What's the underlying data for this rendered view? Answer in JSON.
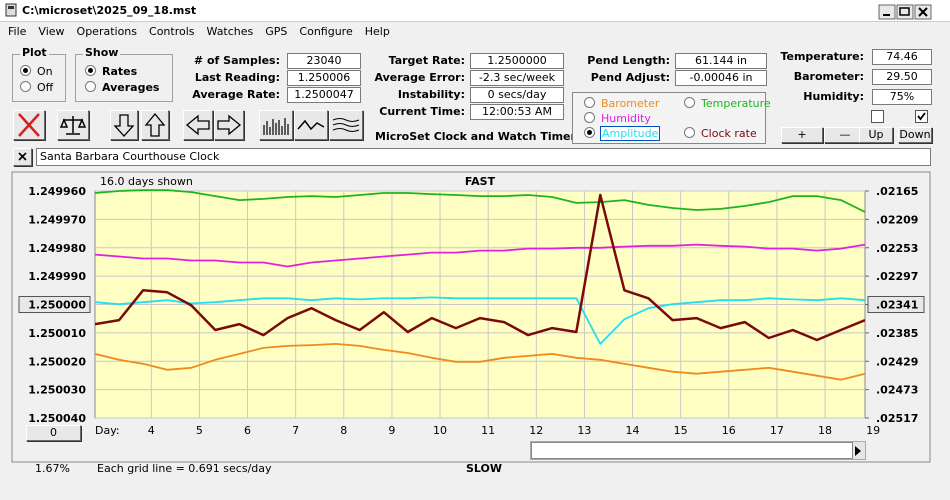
{
  "window": {
    "title": "C:\\microset\\2025_09_18.mst"
  },
  "menu": [
    "File",
    "View",
    "Operations",
    "Controls",
    "Watches",
    "GPS",
    "Configure",
    "Help"
  ],
  "plot_group": {
    "title": "Plot",
    "options": [
      "On",
      "Off"
    ]
  },
  "show_group": {
    "title": "Show",
    "options": [
      "Rates",
      "Averages"
    ]
  },
  "fields": [
    {
      "label": "# of Samples:",
      "value": "23040"
    },
    {
      "label": "Last Reading:",
      "value": "1.250006"
    },
    {
      "label": "Average Rate:",
      "value": "1.2500047"
    },
    {
      "label": "Target Rate:",
      "value": "1.2500000"
    },
    {
      "label": "Average Error:",
      "value": "-2.3 sec/week"
    },
    {
      "label": "Instability:",
      "value": "0 secs/day"
    },
    {
      "label": "Current Time:",
      "value": "12:00:53 AM"
    },
    {
      "label": "Pend Length:",
      "value": "61.144 in"
    },
    {
      "label": "Pend Adjust:",
      "value": "-0.00046 in"
    },
    {
      "label": "Temperature:",
      "value": "74.46"
    },
    {
      "label": "Barometer:",
      "value": "29.50"
    },
    {
      "label": "Humidity:",
      "value": "75%"
    }
  ],
  "env_buttons": [
    "+",
    "—",
    "Up",
    "Down"
  ],
  "app_title": "MicroSet Clock and Watch Timer",
  "clock_name": "Santa Barbara Courthouse Clock",
  "chart_data": {
    "type": "line",
    "span_label": "16.0 days shown",
    "top_label": "FAST",
    "bottom_label": "SLOW",
    "x_label": "Day:",
    "offset_button": "0",
    "zoom_label": "1.67%",
    "grid_note": "Each grid line = 0.691 secs/day",
    "grid": true,
    "selected": 3,
    "ytick_button": 4,
    "y2tick_button": 4,
    "x": [
      2.83,
      3.33,
      3.83,
      4.33,
      4.83,
      5.33,
      5.83,
      6.33,
      6.83,
      7.33,
      7.83,
      8.33,
      8.83,
      9.33,
      9.83,
      10.33,
      10.83,
      11.33,
      11.83,
      12.33,
      12.83,
      13.33,
      13.83,
      14.33,
      14.83,
      15.33,
      15.83,
      16.33,
      16.83,
      17.33,
      17.83,
      18.33,
      18.83
    ],
    "xlim": [
      2.83,
      18.83
    ],
    "xticks": [
      4,
      5,
      6,
      7,
      8,
      9,
      10,
      11,
      12,
      13,
      14,
      15,
      16,
      17,
      18,
      19
    ],
    "ylim": [
      1.25004,
      1.24996
    ],
    "yticks": [
      {
        "value": 1.24996,
        "label": "1.249960"
      },
      {
        "value": 1.24997,
        "label": "1.249970"
      },
      {
        "value": 1.24998,
        "label": "1.249980"
      },
      {
        "value": 1.24999,
        "label": "1.249990"
      },
      {
        "value": 1.25,
        "label": "1.250000"
      },
      {
        "value": 1.25001,
        "label": "1.250010"
      },
      {
        "value": 1.25002,
        "label": "1.250020"
      },
      {
        "value": 1.25003,
        "label": "1.250030"
      },
      {
        "value": 1.25004,
        "label": "1.250040"
      }
    ],
    "y2lim": [
      0.02517,
      0.02165
    ],
    "y2ticks": [
      {
        "value": 0.02165,
        "label": ".02165"
      },
      {
        "value": 0.02209,
        "label": ".02209"
      },
      {
        "value": 0.02253,
        "label": ".02253"
      },
      {
        "value": 0.02297,
        "label": ".02297"
      },
      {
        "value": 0.02341,
        "label": ".02341"
      },
      {
        "value": 0.02385,
        "label": ".02385"
      },
      {
        "value": 0.02429,
        "label": ".02429"
      },
      {
        "value": 0.02473,
        "label": ".02473"
      },
      {
        "value": 0.02517,
        "label": ".02517"
      }
    ],
    "series": [
      {
        "name": "Barometer",
        "color": "#f08a1c",
        "values": [
          1.2500174,
          1.2500195,
          1.2500209,
          1.250023,
          1.2500223,
          1.2500195,
          1.2500174,
          1.2500153,
          1.2500146,
          1.2500143,
          1.2500139,
          1.2500146,
          1.250016,
          1.2500171,
          1.2500188,
          1.2500202,
          1.2500202,
          1.2500188,
          1.2500181,
          1.2500174,
          1.2500188,
          1.2500195,
          1.2500209,
          1.2500223,
          1.2500237,
          1.2500244,
          1.2500237,
          1.250023,
          1.2500223,
          1.2500237,
          1.2500251,
          1.2500265,
          1.2500244
        ]
      },
      {
        "name": "Temperature",
        "color": "#1fb41f",
        "values": [
          1.2499607,
          1.24996,
          1.2499597,
          1.2499597,
          1.2499604,
          1.2499618,
          1.2499632,
          1.2499628,
          1.2499621,
          1.2499618,
          1.2499621,
          1.2499614,
          1.2499607,
          1.2499607,
          1.2499611,
          1.2499614,
          1.2499618,
          1.2499618,
          1.2499614,
          1.2499621,
          1.2499642,
          1.2499639,
          1.2499632,
          1.2499649,
          1.249966,
          1.2499667,
          1.2499663,
          1.2499653,
          1.2499639,
          1.2499618,
          1.2499618,
          1.2499632,
          1.2499674
        ]
      },
      {
        "name": "Humidity",
        "color": "#e020e0",
        "values": [
          1.2499824,
          1.2499831,
          1.2499838,
          1.2499838,
          1.2499845,
          1.2499845,
          1.2499852,
          1.2499852,
          1.2499866,
          1.2499852,
          1.2499845,
          1.2499838,
          1.2499831,
          1.2499824,
          1.2499817,
          1.2499817,
          1.249981,
          1.249981,
          1.2499803,
          1.2499803,
          1.24998,
          1.24998,
          1.2499796,
          1.2499793,
          1.2499793,
          1.2499789,
          1.2499793,
          1.2499796,
          1.2499803,
          1.2499803,
          1.249981,
          1.2499803,
          1.2499789
        ]
      },
      {
        "name": "Amplitude",
        "color": "#22dff0",
        "values": [
          1.2499992,
          1.2499999,
          1.2499992,
          1.2499985,
          1.2499996,
          1.2499992,
          1.2499985,
          1.2499978,
          1.2499978,
          1.2499985,
          1.2499978,
          1.2499982,
          1.2499978,
          1.2499978,
          1.2499975,
          1.2499978,
          1.2499978,
          1.2499978,
          1.2499978,
          1.2499978,
          1.2499978,
          1.2500139,
          1.2500052,
          1.2500013,
          1.2499999,
          1.2499992,
          1.2499985,
          1.2499985,
          1.2499978,
          1.2499982,
          1.2499985,
          1.2499978,
          1.2499985
        ]
      },
      {
        "name": "Clock rate",
        "color": "#7a0a0a",
        "values": [
          1.2500069,
          1.2500055,
          1.249995,
          1.2499957,
          1.2500003,
          1.250009,
          1.2500069,
          1.2500108,
          1.2500048,
          1.2500013,
          1.2500055,
          1.250009,
          1.2500027,
          1.2500097,
          1.2500048,
          1.2500083,
          1.2500048,
          1.2500062,
          1.2500108,
          1.2500083,
          1.2500097,
          1.2499614,
          1.249995,
          1.2499978,
          1.2500055,
          1.2500048,
          1.2500083,
          1.2500062,
          1.2500118,
          1.250009,
          1.2500125,
          1.250009,
          1.2500055
        ]
      }
    ]
  }
}
